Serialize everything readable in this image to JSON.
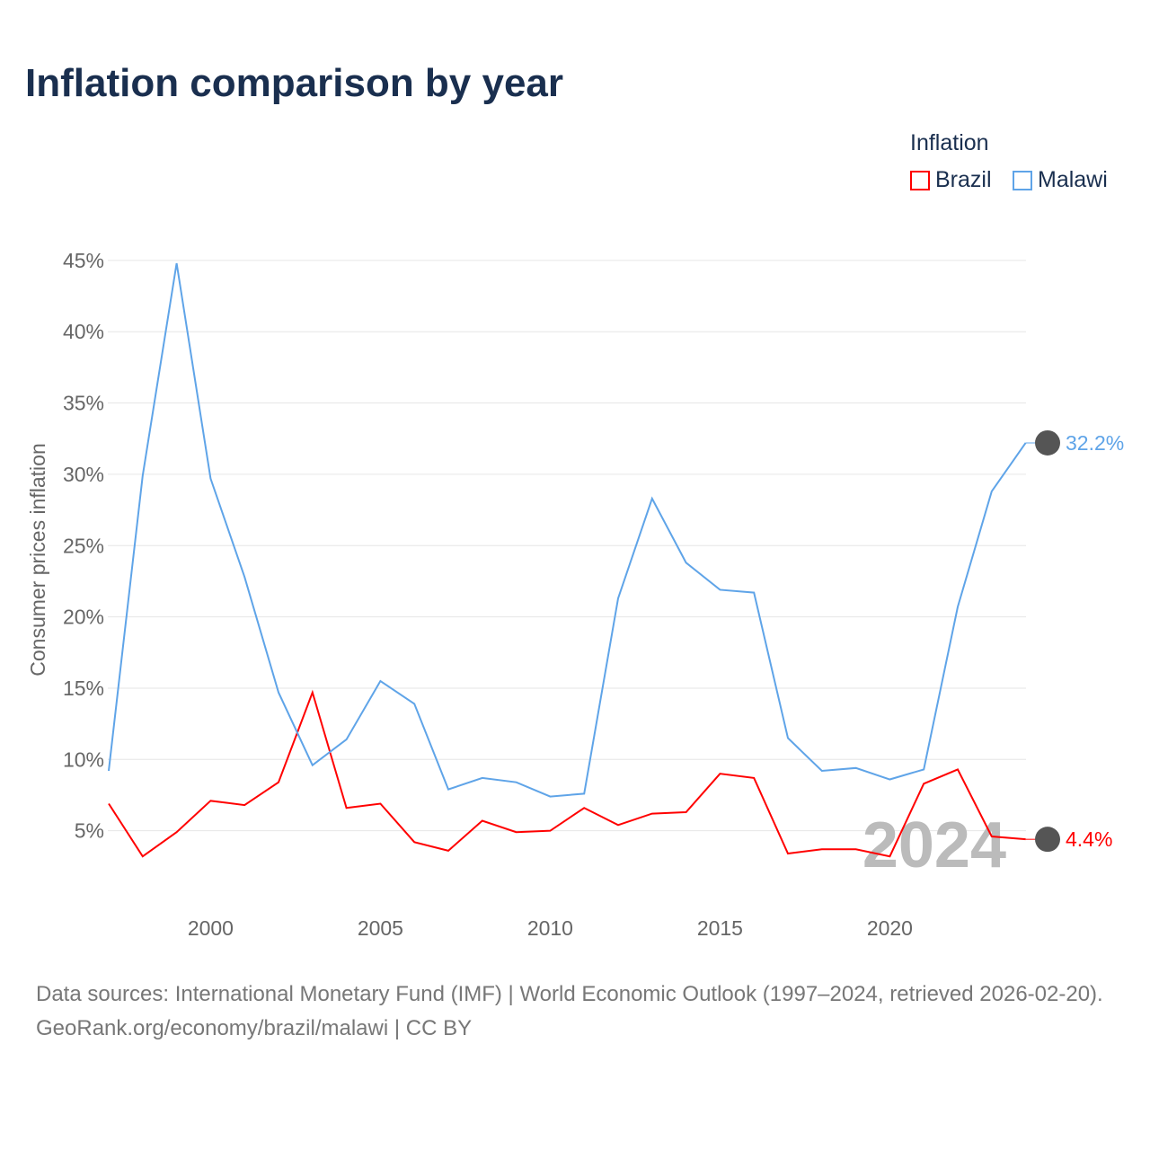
{
  "title": "Inflation comparison by year",
  "footer": {
    "sources": "Data sources: International Monetary Fund (IMF) | World Economic Outlook (1997–2024, retrieved 2026-02-20).",
    "link": "GeoRank.org/economy/brazil/malawi | CC BY"
  },
  "chart_data": {
    "type": "line",
    "title": "Inflation comparison by year",
    "ylabel": "Consumer prices inflation",
    "xlabel": "",
    "legend_title": "Inflation",
    "legend_position": "top-right",
    "year_watermark": "2024",
    "ylim": [
      0,
      46
    ],
    "xlim": [
      1997,
      2024
    ],
    "yticks": [
      5,
      10,
      15,
      20,
      25,
      30,
      35,
      40,
      45
    ],
    "ytick_labels": [
      "5%",
      "10%",
      "15%",
      "20%",
      "25%",
      "30%",
      "35%",
      "40%",
      "45%"
    ],
    "xticks": [
      2000,
      2005,
      2010,
      2015,
      2020
    ],
    "xtick_labels": [
      "2000",
      "2005",
      "2010",
      "2015",
      "2020"
    ],
    "x": [
      1997,
      1998,
      1999,
      2000,
      2001,
      2002,
      2003,
      2004,
      2005,
      2006,
      2007,
      2008,
      2009,
      2010,
      2011,
      2012,
      2013,
      2014,
      2015,
      2016,
      2017,
      2018,
      2019,
      2020,
      2021,
      2022,
      2023,
      2024
    ],
    "series": [
      {
        "name": "Brazil",
        "color": "#ff0000",
        "end_label": "4.4%",
        "values": [
          6.9,
          3.2,
          4.9,
          7.1,
          6.8,
          8.4,
          14.7,
          6.6,
          6.9,
          4.2,
          3.6,
          5.7,
          4.9,
          5.0,
          6.6,
          5.4,
          6.2,
          6.3,
          9.0,
          8.7,
          3.4,
          3.7,
          3.7,
          3.2,
          8.3,
          9.3,
          4.6,
          4.4
        ]
      },
      {
        "name": "Malawi",
        "color": "#5fa4e8",
        "end_label": "32.2%",
        "values": [
          9.2,
          29.9,
          44.8,
          29.7,
          22.8,
          14.7,
          9.6,
          11.4,
          15.5,
          13.9,
          7.9,
          8.7,
          8.4,
          7.4,
          7.6,
          21.3,
          28.3,
          23.8,
          21.9,
          21.7,
          11.5,
          9.2,
          9.4,
          8.6,
          9.3,
          20.7,
          28.8,
          32.2
        ]
      }
    ]
  }
}
